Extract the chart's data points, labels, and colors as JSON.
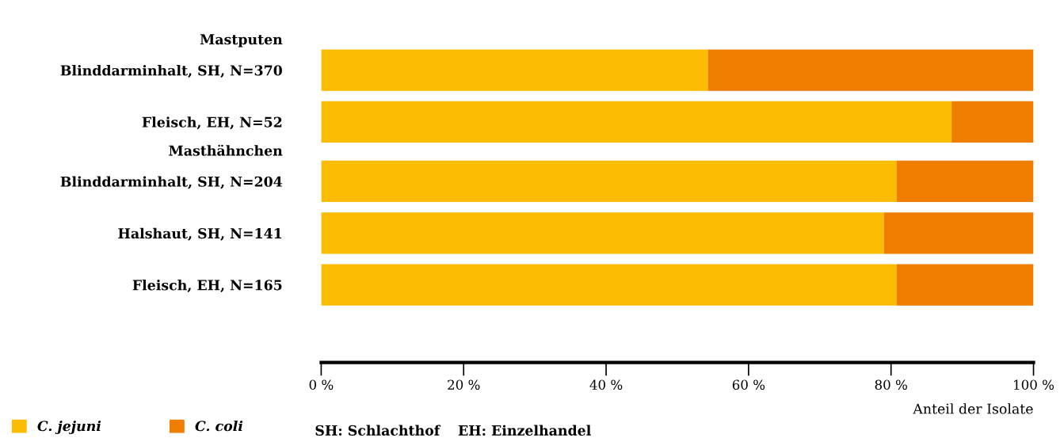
{
  "chart_data": {
    "type": "bar",
    "orientation": "horizontal",
    "stacked": true,
    "categories": [
      "Mastputen",
      "Blinddarminhalt, SH, N=370",
      "Fleisch, EH, N=52",
      "Masthähnchen",
      "Blinddarminhalt, SH, N=204",
      "Halshaut, SH, N=141",
      "Fleisch, EH, N=165"
    ],
    "series": [
      {
        "name": "C. jejuni",
        "color": "#fabb00",
        "values": [
          null,
          54.3,
          88.5,
          null,
          80.8,
          79.0,
          80.8
        ]
      },
      {
        "name": "C. coli",
        "color": "#ee7d00",
        "values": [
          null,
          45.7,
          11.5,
          null,
          19.2,
          21.0,
          19.2
        ]
      }
    ],
    "xlim": [
      0,
      100
    ],
    "xticks": [
      {
        "value": 0,
        "label": "0 %"
      },
      {
        "value": 20,
        "label": "20 %"
      },
      {
        "value": 40,
        "label": "40 %"
      },
      {
        "value": 60,
        "label": "60 %"
      },
      {
        "value": 80,
        "label": "80 %"
      },
      {
        "value": 100,
        "label": "100 %"
      }
    ],
    "xlabel": "Anteil der Isolate",
    "legend": "bottom left",
    "grid": false,
    "annotations": [
      "SH: Schlachthof",
      "EH: Einzelhandel"
    ]
  }
}
